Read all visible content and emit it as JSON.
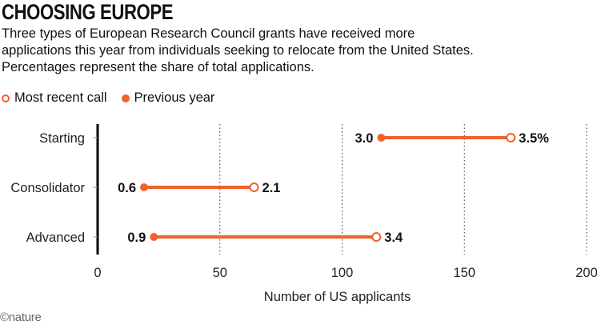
{
  "title": "CHOOSING EUROPE",
  "subtitle": "Three types of European Research Council grants have received more applications this year from individuals seeking to relocate from the United States. Percentages represent the share of total applications.",
  "logo": "©nature",
  "colors": {
    "accent": "#f0622b"
  },
  "chart_data": {
    "type": "dumbbell",
    "xlabel": "Number of US applicants",
    "xlim": [
      0,
      200
    ],
    "xticks": [
      "0",
      "50",
      "100",
      "150",
      "200"
    ],
    "grid": "vertical dotted",
    "legend_position": "top-left",
    "categories": [
      "Starting",
      "Consolidator",
      "Advanced"
    ],
    "series": [
      {
        "name": "Most recent call",
        "marker": "open circle",
        "values": [
          169,
          64,
          114
        ],
        "labels": [
          "3.5%",
          "2.1",
          "3.4"
        ]
      },
      {
        "name": "Previous year",
        "marker": "filled circle",
        "values": [
          116,
          19,
          23
        ],
        "labels": [
          "3.0",
          "0.6",
          "0.9"
        ]
      }
    ]
  }
}
